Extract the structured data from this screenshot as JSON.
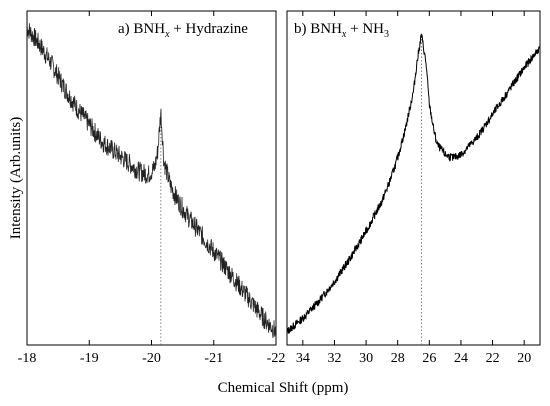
{
  "figure": {
    "xlabel": "Chemical Shift (ppm)",
    "ylabel": "Intensity (Arb.units)"
  },
  "chart_data": [
    {
      "type": "line",
      "title": "a) BNHx + Hydrazine",
      "title_parts": {
        "prefix": "a) BNH",
        "sub": "x",
        "suffix": " + Hydrazine"
      },
      "xlabel": "Chemical Shift (ppm)",
      "ylabel": "Intensity (Arb.units)",
      "xlim": [
        -18,
        -22
      ],
      "ylim": [
        0,
        1
      ],
      "xticks": [
        -18,
        -19,
        -20,
        -21,
        -22
      ],
      "xtick_labels": [
        "-18",
        "-19",
        "-20",
        "-21",
        "-22"
      ],
      "yticks_shown": false,
      "grid": false,
      "reference_line": {
        "x": -20.15,
        "style": "dotted"
      },
      "series": [
        {
          "x": [
            -18.0,
            -18.2,
            -18.4,
            -18.6,
            -18.8,
            -19.0,
            -19.2,
            -19.4,
            -19.6,
            -19.8,
            -19.95,
            -20.05,
            -20.1,
            -20.15,
            -20.2,
            -20.3,
            -20.4,
            -20.6,
            -20.8,
            -21.0,
            -21.2,
            -21.4,
            -21.6,
            -21.8,
            -22.0
          ],
          "values": [
            0.95,
            0.9,
            0.84,
            0.77,
            0.71,
            0.66,
            0.61,
            0.58,
            0.55,
            0.52,
            0.51,
            0.53,
            0.58,
            0.7,
            0.55,
            0.48,
            0.44,
            0.38,
            0.33,
            0.28,
            0.23,
            0.18,
            0.13,
            0.08,
            0.04
          ]
        }
      ]
    },
    {
      "type": "line",
      "title": "b) BNHx + NH3",
      "title_parts": {
        "prefix": "b) BNH",
        "sub": "x",
        "mid": " + NH",
        "sub2": "3"
      },
      "xlabel": "Chemical Shift (ppm)",
      "ylabel": "Intensity (Arb.units)",
      "xlim": [
        35,
        19
      ],
      "ylim": [
        0,
        1
      ],
      "xticks": [
        34,
        32,
        30,
        28,
        26,
        24,
        22,
        20
      ],
      "xtick_labels": [
        "34",
        "32",
        "30",
        "28",
        "26",
        "24",
        "22",
        "20"
      ],
      "yticks_shown": false,
      "grid": false,
      "reference_line": {
        "x": 26.5,
        "style": "dotted"
      },
      "series": [
        {
          "x": [
            35.0,
            34.0,
            33.0,
            32.0,
            31.0,
            30.0,
            29.0,
            28.5,
            28.0,
            27.5,
            27.0,
            26.8,
            26.5,
            26.2,
            26.0,
            25.7,
            25.5,
            25.0,
            24.5,
            24.0,
            23.0,
            22.0,
            21.0,
            20.0,
            19.0
          ],
          "values": [
            0.04,
            0.08,
            0.13,
            0.19,
            0.26,
            0.34,
            0.43,
            0.49,
            0.56,
            0.65,
            0.76,
            0.84,
            0.93,
            0.84,
            0.72,
            0.64,
            0.6,
            0.57,
            0.56,
            0.57,
            0.62,
            0.69,
            0.76,
            0.83,
            0.89
          ]
        }
      ]
    }
  ]
}
